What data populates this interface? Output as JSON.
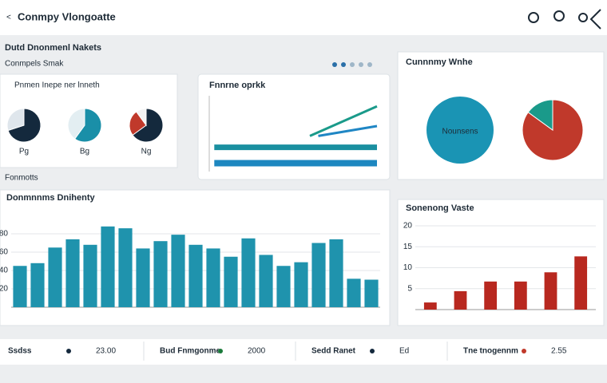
{
  "header": {
    "back": "<",
    "title": "Conmpy Vlongoatte"
  },
  "subtitle": "Dutd Dnonmenl Nakets",
  "section_a": "Conmpels Smak",
  "section_b": "Fonmotts",
  "donuts": {
    "title": "Pnmen Inepe ner lnneth",
    "items": [
      {
        "label": "Pg",
        "values": [
          70,
          30
        ],
        "colors": [
          "#14293d",
          "#dfe6ec"
        ]
      },
      {
        "label": "Bg",
        "values": [
          60,
          40
        ],
        "colors": [
          "#1a8fa8",
          "#e3eef2"
        ]
      },
      {
        "label": "Ng",
        "values": [
          65,
          25,
          10
        ],
        "colors": [
          "#14293d",
          "#c0392b",
          "#f3f3f3"
        ]
      }
    ]
  },
  "line_chart": {
    "type": "line",
    "title": "Fnnrne oprkk",
    "xlim": [
      0,
      10
    ],
    "ylim": [
      0,
      10
    ],
    "series": [
      {
        "color": "#1a9a8a",
        "line_width": 3,
        "x": [
          6,
          10
        ],
        "values": [
          4.7,
          8.6
        ]
      },
      {
        "color": "#1f86c4",
        "line_width": 3,
        "x": [
          6.5,
          10
        ],
        "values": [
          4.7,
          6.0
        ]
      },
      {
        "color": "#1a8fa0",
        "line_width": 7,
        "x": [
          0.3,
          10
        ],
        "values": [
          3.2,
          3.2
        ]
      },
      {
        "color": "#1d87c0",
        "line_width": 8,
        "x": [
          0.3,
          10
        ],
        "values": [
          1.1,
          1.1
        ]
      }
    ]
  },
  "pies": {
    "title": "Cunnnmy Wnhe",
    "charts": [
      {
        "label": "Nounsens",
        "values": [
          100
        ],
        "colors": [
          "#1a94b4"
        ]
      },
      {
        "values": [
          85,
          15
        ],
        "colors": [
          "#c0392b",
          "#1a9a8a"
        ]
      }
    ]
  },
  "bar_chart": {
    "type": "bar",
    "title": "Donmnnms Dnihenty",
    "color": "#1f93ad",
    "values": [
      45,
      48,
      65,
      74,
      68,
      88,
      86,
      64,
      72,
      79,
      68,
      64,
      55,
      75,
      57,
      45,
      49,
      70,
      74,
      31,
      30
    ],
    "ylim": [
      0,
      100
    ],
    "yticks": [
      20,
      40,
      60,
      80
    ],
    "grid": true
  },
  "red_chart": {
    "type": "bar",
    "title": "Sonenong Vaste",
    "color": "#b8281f",
    "values": [
      1.7,
      4.4,
      6.7,
      6.7,
      8.9,
      12.7
    ],
    "ylim": [
      0,
      20
    ],
    "yticks": [
      5,
      10,
      15,
      20
    ],
    "grid": true
  },
  "stats": [
    {
      "label": "Ssdss",
      "value": "23.00"
    },
    {
      "label": "Bud Fnmgonme",
      "value": "2000"
    },
    {
      "label": "Sedd Ranet",
      "value": "Ed"
    },
    {
      "label": "Tne tnogennm",
      "value": "2.55"
    }
  ]
}
